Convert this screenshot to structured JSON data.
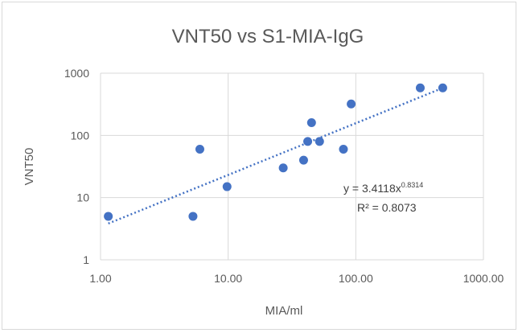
{
  "chart_data": {
    "type": "scatter",
    "title": "VNT50 vs S1-MIA-IgG",
    "xlabel": "MIA/ml",
    "ylabel": "VNT50",
    "x_scale": "log",
    "y_scale": "log",
    "xlim": [
      1,
      1000
    ],
    "ylim": [
      1,
      1000
    ],
    "x_ticks": [
      "1.00",
      "10.00",
      "100.00",
      "1000.00"
    ],
    "y_ticks": [
      "1",
      "10",
      "100",
      "1000"
    ],
    "grid": true,
    "legend": "none",
    "marker_color": "#4472c4",
    "points": [
      {
        "x": 1.15,
        "y": 5
      },
      {
        "x": 5.3,
        "y": 5
      },
      {
        "x": 6.0,
        "y": 60
      },
      {
        "x": 9.8,
        "y": 15
      },
      {
        "x": 27,
        "y": 30
      },
      {
        "x": 39,
        "y": 40
      },
      {
        "x": 42,
        "y": 80
      },
      {
        "x": 45,
        "y": 160
      },
      {
        "x": 52,
        "y": 80
      },
      {
        "x": 80,
        "y": 60
      },
      {
        "x": 92,
        "y": 320
      },
      {
        "x": 320,
        "y": 580
      },
      {
        "x": 480,
        "y": 580
      }
    ],
    "trendline": {
      "type": "power",
      "a": 3.4118,
      "b": 0.8314,
      "equation_main": "y = 3.4118x",
      "equation_exp": "0.8314",
      "r2_label": "R² = 0.8073",
      "color": "#4472c4"
    }
  }
}
